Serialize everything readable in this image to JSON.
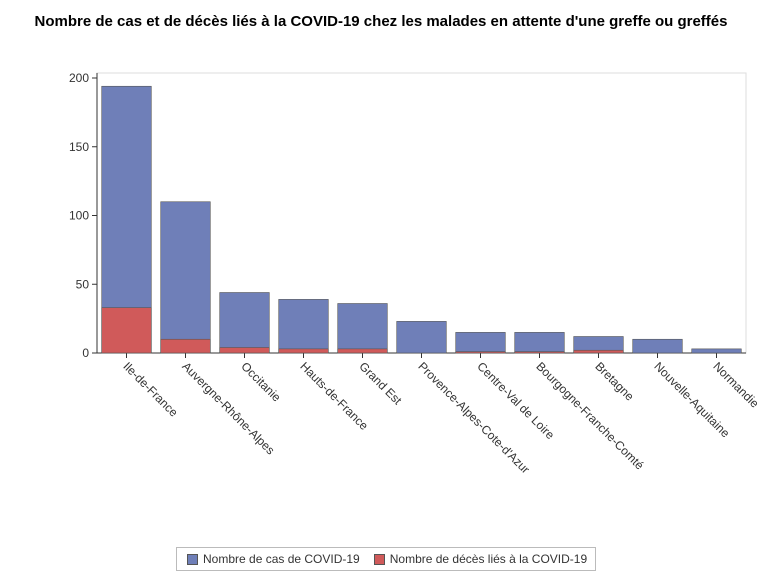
{
  "chart_data": {
    "type": "bar",
    "title": "Nombre de cas et de décès liés à la COVID-19 chez les malades en attente d'une greffe ou greffés",
    "categories": [
      "Ile-de-France",
      "Auvergne-Rhône-Alpes",
      "Occitanie",
      "Hauts-de-France",
      "Grand Est",
      "Provence-Alpes-Cote-d'Azur",
      "Centre-Val de Loire",
      "Bourgogne-Franche-Comté",
      "Bretagne",
      "Nouvelle-Aquitaine",
      "Normandie"
    ],
    "series": [
      {
        "name": "Nombre de cas de COVID-19",
        "color": "#6f7fb8",
        "values": [
          194,
          110,
          44,
          39,
          36,
          23,
          15,
          15,
          12,
          10,
          3
        ]
      },
      {
        "name": "Nombre de décès liés à la COVID-19",
        "color": "#d05a5a",
        "values": [
          33,
          10,
          4,
          3,
          3,
          0,
          1,
          1,
          2,
          0,
          0
        ]
      }
    ],
    "ylim": [
      0,
      200
    ],
    "yticks": [
      0,
      50,
      100,
      150,
      200
    ]
  }
}
